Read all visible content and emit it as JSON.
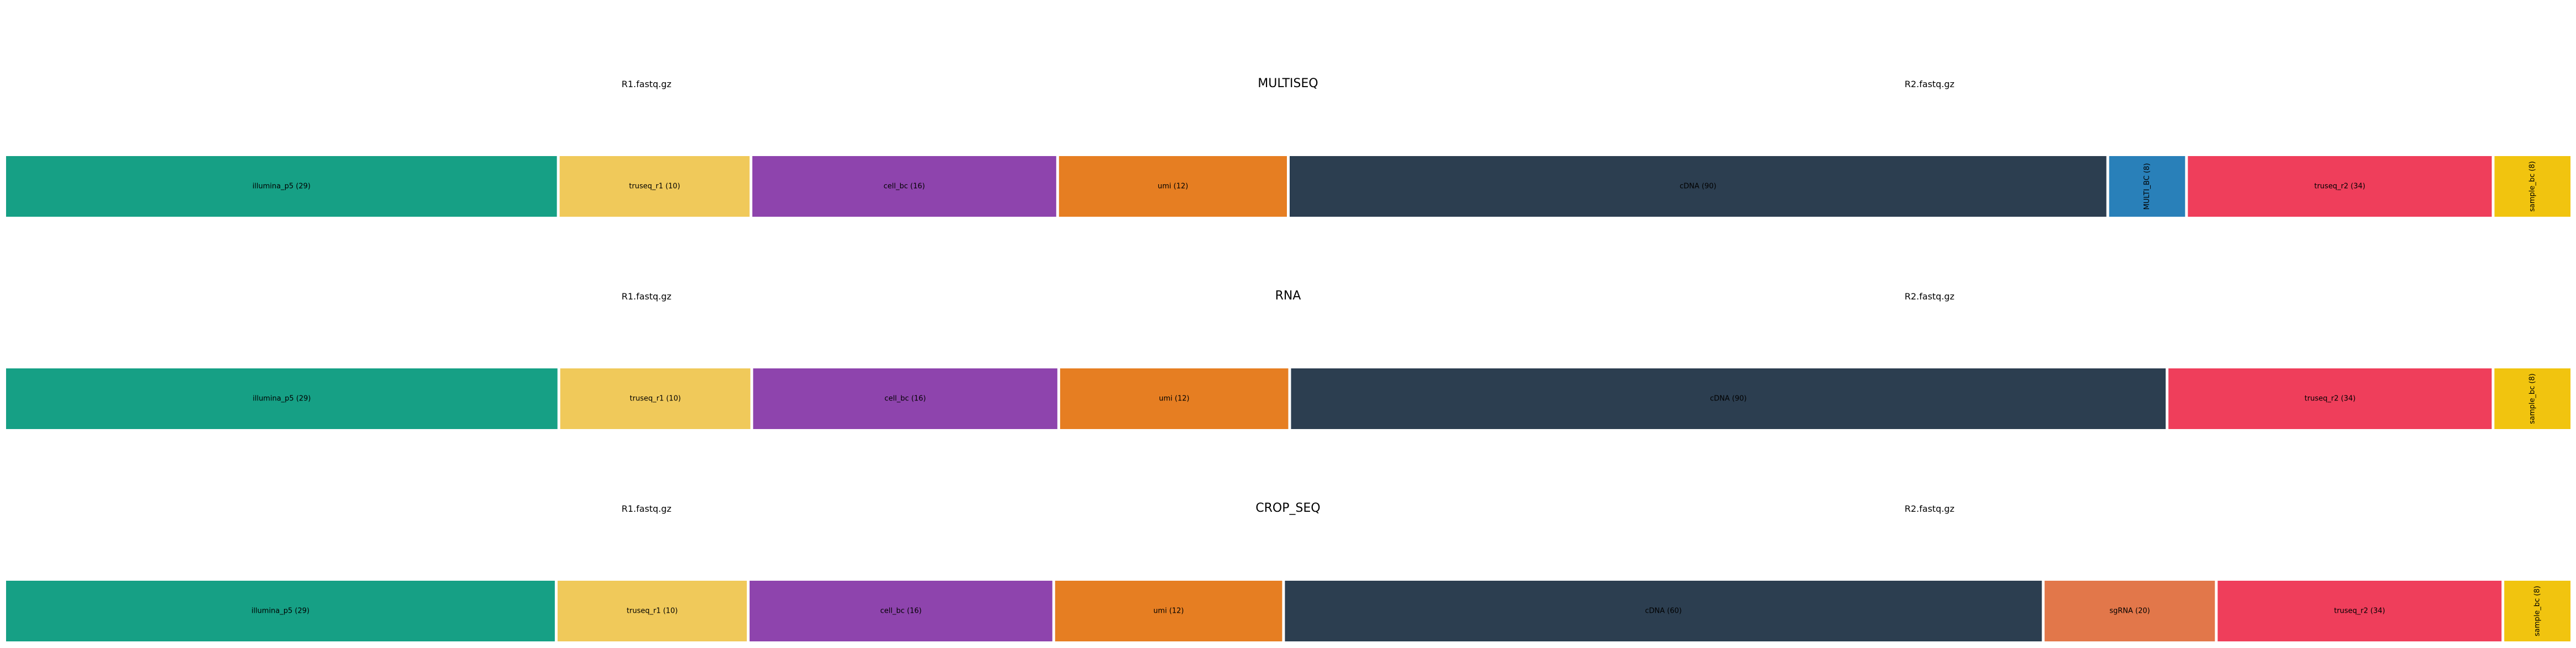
{
  "panels": [
    {
      "title": "MULTISEQ",
      "read_labels": [
        "R1.fastq.gz",
        "R2.fastq.gz"
      ],
      "segments": [
        {
          "name": "illumina_p5",
          "length": 29,
          "label": "illumina_p5 (29)",
          "color": "#16a085",
          "orientation": "horizontal"
        },
        {
          "name": "truseq_r1",
          "length": 10,
          "label": "truseq_r1 (10)",
          "color": "#f0c95a",
          "orientation": "horizontal"
        },
        {
          "name": "cell_bc",
          "length": 16,
          "label": "cell_bc (16)",
          "color": "#8e44ad",
          "orientation": "horizontal"
        },
        {
          "name": "umi",
          "length": 12,
          "label": "umi (12)",
          "color": "#e67e22",
          "orientation": "horizontal"
        },
        {
          "name": "cDNA",
          "length": 43,
          "label": "cDNA (90)",
          "color": "#2c3e50",
          "orientation": "horizontal"
        },
        {
          "name": "MULTI_BC",
          "length": 4,
          "label": "MULTI_BC (8)",
          "color": "#2980b9",
          "orientation": "vertical"
        },
        {
          "name": "truseq_r2",
          "length": 16,
          "label": "truseq_r2 (34)",
          "color": "#ef3e5b",
          "orientation": "horizontal"
        },
        {
          "name": "sample_bc",
          "length": 4,
          "label": "sample_bc (8)",
          "color": "#f1c40f",
          "orientation": "vertical"
        }
      ]
    },
    {
      "title": "RNA",
      "read_labels": [
        "R1.fastq.gz",
        "R2.fastq.gz"
      ],
      "segments": [
        {
          "name": "illumina_p5",
          "length": 29,
          "label": "illumina_p5 (29)",
          "color": "#16a085",
          "orientation": "horizontal"
        },
        {
          "name": "truseq_r1",
          "length": 10,
          "label": "truseq_r1 (10)",
          "color": "#f0c95a",
          "orientation": "horizontal"
        },
        {
          "name": "cell_bc",
          "length": 16,
          "label": "cell_bc (16)",
          "color": "#8e44ad",
          "orientation": "horizontal"
        },
        {
          "name": "umi",
          "length": 12,
          "label": "umi (12)",
          "color": "#e67e22",
          "orientation": "horizontal"
        },
        {
          "name": "cDNA",
          "length": 46,
          "label": "cDNA (90)",
          "color": "#2c3e50",
          "orientation": "horizontal"
        },
        {
          "name": "truseq_r2",
          "length": 17,
          "label": "truseq_r2 (34)",
          "color": "#ef3e5b",
          "orientation": "horizontal"
        },
        {
          "name": "sample_bc",
          "length": 4,
          "label": "sample_bc (8)",
          "color": "#f1c40f",
          "orientation": "vertical"
        }
      ]
    },
    {
      "title": "CROP_SEQ",
      "read_labels": [
        "R1.fastq.gz",
        "R2.fastq.gz"
      ],
      "segments": [
        {
          "name": "illumina_p5",
          "length": 29,
          "label": "illumina_p5 (29)",
          "color": "#16a085",
          "orientation": "horizontal"
        },
        {
          "name": "truseq_r1",
          "length": 10,
          "label": "truseq_r1 (10)",
          "color": "#f0c95a",
          "orientation": "horizontal"
        },
        {
          "name": "cell_bc",
          "length": 16,
          "label": "cell_bc (16)",
          "color": "#8e44ad",
          "orientation": "horizontal"
        },
        {
          "name": "umi",
          "length": 12,
          "label": "umi (12)",
          "color": "#e67e22",
          "orientation": "horizontal"
        },
        {
          "name": "cDNA",
          "length": 40,
          "label": "cDNA (60)",
          "color": "#2c3e50",
          "orientation": "horizontal"
        },
        {
          "name": "sgRNA",
          "length": 9,
          "label": "sgRNA (20)",
          "color": "#e2774a",
          "orientation": "horizontal"
        },
        {
          "name": "truseq_r2",
          "length": 15,
          "label": "truseq_r2 (34)",
          "color": "#ef3e5b",
          "orientation": "horizontal"
        },
        {
          "name": "sample_bc",
          "length": 3.5,
          "label": "sample_bc (8)",
          "color": "#f1c40f",
          "orientation": "vertical"
        }
      ]
    }
  ]
}
